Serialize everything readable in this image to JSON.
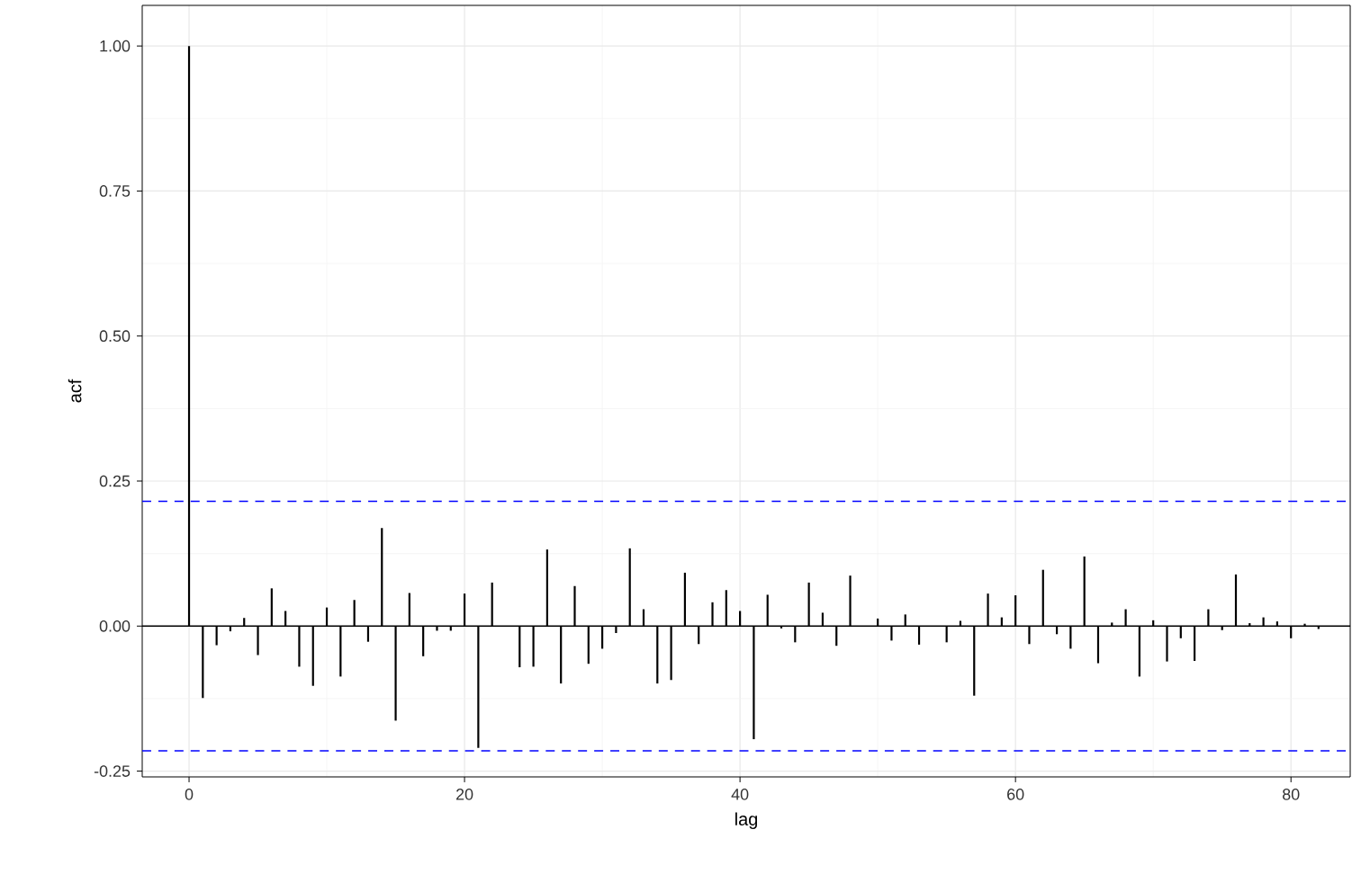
{
  "chart_data": {
    "type": "bar",
    "xlabel": "lag",
    "ylabel": "acf",
    "x": [
      0,
      1,
      2,
      3,
      4,
      5,
      6,
      7,
      8,
      9,
      10,
      11,
      12,
      13,
      14,
      15,
      16,
      17,
      18,
      19,
      20,
      21,
      22,
      23,
      24,
      25,
      26,
      27,
      28,
      29,
      30,
      31,
      32,
      33,
      34,
      35,
      36,
      37,
      38,
      39,
      40,
      41,
      42,
      43,
      44,
      45,
      46,
      47,
      48,
      49,
      50,
      51,
      52,
      53,
      54,
      55,
      56,
      57,
      58,
      59,
      60,
      61,
      62,
      63,
      64,
      65,
      66,
      67,
      68,
      69,
      70,
      71,
      72,
      73,
      74,
      75,
      76,
      77,
      78,
      79,
      80,
      81,
      82
    ],
    "values": [
      1.0,
      -0.124,
      -0.033,
      -0.009,
      0.014,
      -0.05,
      0.065,
      0.026,
      -0.07,
      -0.103,
      0.032,
      -0.087,
      0.045,
      -0.027,
      0.169,
      -0.163,
      0.057,
      -0.052,
      -0.008,
      -0.008,
      0.056,
      -0.21,
      0.075,
      0.0,
      -0.071,
      -0.07,
      0.132,
      -0.099,
      0.069,
      -0.065,
      -0.039,
      -0.012,
      0.134,
      0.029,
      -0.099,
      -0.093,
      0.092,
      -0.031,
      0.041,
      0.062,
      0.026,
      -0.195,
      0.054,
      -0.004,
      -0.028,
      0.075,
      0.023,
      -0.034,
      0.087,
      0.0,
      0.013,
      -0.025,
      0.02,
      -0.032,
      0.0,
      -0.028,
      0.009,
      -0.12,
      0.056,
      0.015,
      0.053,
      -0.031,
      0.097,
      -0.014,
      -0.039,
      0.12,
      -0.064,
      0.006,
      0.029,
      -0.087,
      0.01,
      -0.061,
      -0.021,
      -0.06,
      0.029,
      -0.007,
      0.089,
      0.005,
      0.015,
      0.008,
      -0.021,
      0.004,
      -0.005
    ],
    "color": "#000000",
    "marker": "none",
    "xlim": [
      -3.4,
      84.3
    ],
    "ylim": [
      -0.26,
      1.07
    ],
    "xticks": [
      0,
      20,
      40,
      60,
      80
    ],
    "yticks": [
      {
        "value": -0.25,
        "label": "-0.25"
      },
      {
        "value": 0,
        "label": "0.00"
      },
      {
        "value": 0.25,
        "label": "0.25"
      },
      {
        "value": 0.5,
        "label": "0.50"
      },
      {
        "value": 0.75,
        "label": "0.75"
      },
      {
        "value": 1.0,
        "label": "1.00"
      }
    ],
    "grid": true,
    "ref_lines": [
      {
        "axis": "y",
        "value": 0,
        "color": "#000000",
        "line_style": "solid"
      },
      {
        "axis": "y",
        "value": 0.215,
        "color": "#0000ff",
        "line_style": "dashed"
      },
      {
        "axis": "y",
        "value": -0.215,
        "color": "#0000ff",
        "line_style": "dashed"
      }
    ]
  }
}
